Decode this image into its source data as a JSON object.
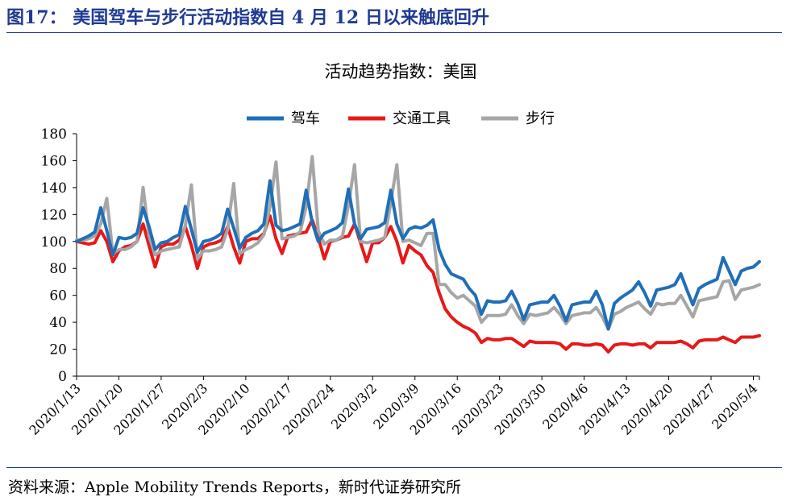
{
  "figure": {
    "title": "图17：  美国驾车与步行活动指数自 4 月 12 日以来触底回升",
    "source": "资料来源：Apple Mobility Trends Reports，新时代证券研究所"
  },
  "colors": {
    "driving": "#1f6fb8",
    "transit": "#e81818",
    "walking": "#a6a6a6",
    "frame": "#1f3a93"
  },
  "chart_data": {
    "type": "line",
    "title": "活动趋势指数：美国",
    "xlabel": "",
    "ylabel": "",
    "ylim": [
      0,
      180
    ],
    "yticks": [
      0,
      20,
      40,
      60,
      80,
      100,
      120,
      140,
      160,
      180
    ],
    "grid": false,
    "legend_position": "top-center",
    "x_start": "2020/1/13",
    "x_end": "2020/5/8",
    "x_ticks": [
      "2020/1/13",
      "2020/1/20",
      "2020/1/27",
      "2020/2/3",
      "2020/2/10",
      "2020/2/17",
      "2020/2/24",
      "2020/3/2",
      "2020/3/9",
      "2020/3/16",
      "2020/3/23",
      "2020/3/30",
      "2020/4/6",
      "2020/4/13",
      "2020/4/20",
      "2020/4/27",
      "2020/5/4"
    ],
    "series": [
      {
        "name": "驾车",
        "color": "#1f6fb8",
        "values": [
          100,
          102,
          104,
          107,
          125,
          108,
          90,
          103,
          102,
          103,
          106,
          125,
          111,
          94,
          99,
          100,
          103,
          105,
          126,
          109,
          92,
          100,
          101,
          103,
          106,
          124,
          110,
          95,
          103,
          106,
          108,
          113,
          145,
          112,
          108,
          109,
          111,
          113,
          138,
          114,
          100,
          106,
          108,
          110,
          114,
          139,
          113,
          102,
          109,
          110,
          111,
          114,
          138,
          113,
          102,
          109,
          111,
          110,
          112,
          116,
          94,
          83,
          76,
          74,
          72,
          65,
          60,
          46,
          56,
          55,
          55,
          56,
          63,
          54,
          42,
          53,
          54,
          55,
          55,
          60,
          52,
          41,
          53,
          54,
          55,
          55,
          63,
          53,
          35,
          54,
          58,
          61,
          64,
          70,
          62,
          52,
          64,
          65,
          66,
          68,
          76,
          64,
          53,
          65,
          68,
          70,
          72,
          88,
          78,
          68,
          78,
          80,
          81,
          85
        ]
      },
      {
        "name": "交通工具",
        "color": "#e81818",
        "values": [
          100,
          99,
          98,
          99,
          108,
          100,
          85,
          93,
          96,
          97,
          100,
          113,
          97,
          81,
          96,
          98,
          98,
          101,
          111,
          97,
          80,
          96,
          98,
          99,
          101,
          111,
          96,
          84,
          100,
          102,
          102,
          106,
          119,
          102,
          91,
          104,
          105,
          106,
          107,
          116,
          103,
          87,
          100,
          101,
          103,
          104,
          113,
          99,
          85,
          99,
          99,
          103,
          111,
          100,
          84,
          97,
          93,
          90,
          82,
          77,
          62,
          50,
          44,
          40,
          37,
          35,
          32,
          25,
          28,
          27,
          27,
          28,
          28,
          25,
          22,
          26,
          25,
          25,
          25,
          25,
          24,
          20,
          24,
          24,
          23,
          23,
          24,
          23,
          18,
          23,
          24,
          24,
          23,
          24,
          24,
          21,
          25,
          25,
          25,
          25,
          26,
          24,
          21,
          26,
          27,
          27,
          27,
          29,
          27,
          25,
          29,
          29,
          29,
          30
        ]
      },
      {
        "name": "步行",
        "color": "#a6a6a6",
        "values": [
          101,
          101,
          102,
          104,
          113,
          132,
          91,
          94,
          94,
          96,
          100,
          140,
          104,
          90,
          93,
          94,
          95,
          96,
          112,
          142,
          87,
          93,
          93,
          94,
          96,
          109,
          143,
          91,
          94,
          96,
          99,
          105,
          126,
          159,
          102,
          103,
          104,
          107,
          126,
          163,
          108,
          98,
          101,
          101,
          104,
          127,
          157,
          100,
          99,
          100,
          101,
          103,
          129,
          157,
          100,
          101,
          99,
          97,
          106,
          106,
          68,
          68,
          62,
          58,
          60,
          56,
          52,
          40,
          45,
          45,
          45,
          46,
          53,
          45,
          39,
          46,
          45,
          46,
          47,
          51,
          46,
          39,
          45,
          46,
          47,
          47,
          51,
          44,
          35,
          46,
          48,
          51,
          53,
          55,
          50,
          46,
          54,
          53,
          54,
          54,
          60,
          52,
          44,
          56,
          57,
          58,
          59,
          70,
          71,
          57,
          64,
          65,
          66,
          68
        ]
      }
    ]
  }
}
